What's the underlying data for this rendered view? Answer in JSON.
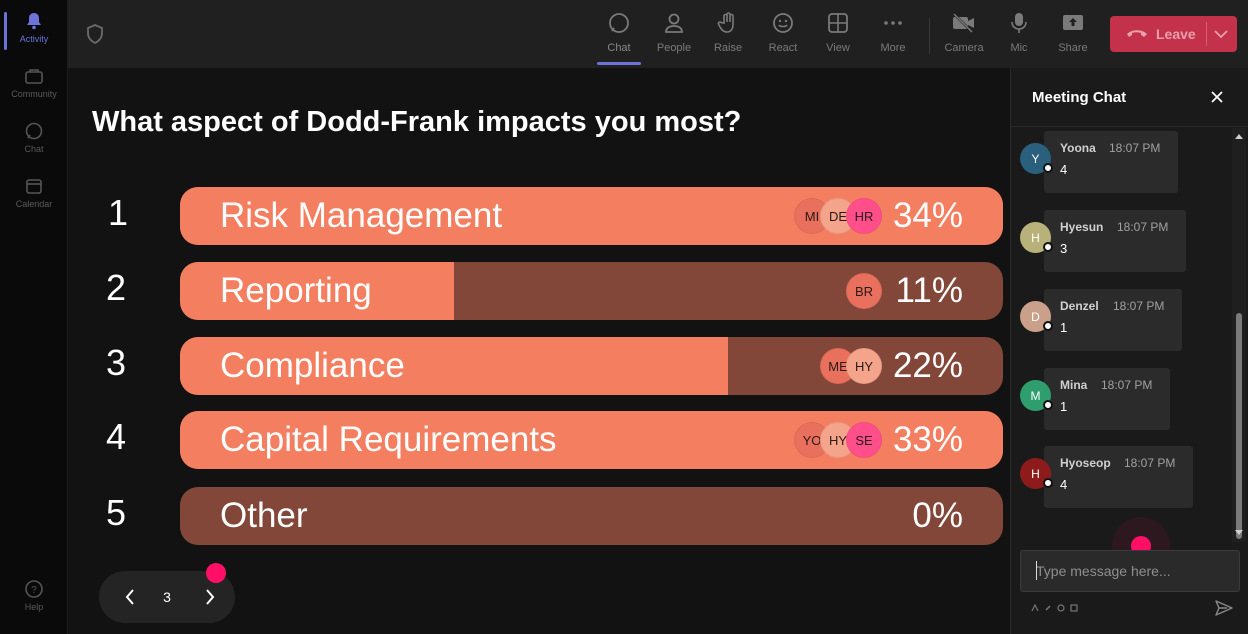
{
  "rail": {
    "items": [
      {
        "label": "Activity",
        "icon": "bell-icon",
        "active": true
      },
      {
        "label": "Community",
        "icon": "community-icon",
        "active": false
      },
      {
        "label": "Chat",
        "icon": "chat-icon",
        "active": false
      },
      {
        "label": "Calendar",
        "icon": "calendar-icon",
        "active": false
      }
    ],
    "help": {
      "label": "Help",
      "icon": "help-icon"
    }
  },
  "toolbar": {
    "buttons": [
      {
        "label": "Chat",
        "icon": "chat-bubble-icon",
        "active": true
      },
      {
        "label": "People",
        "icon": "people-icon"
      },
      {
        "label": "Raise",
        "icon": "raise-hand-icon"
      },
      {
        "label": "React",
        "icon": "react-smiley-icon"
      },
      {
        "label": "View",
        "icon": "view-grid-icon"
      },
      {
        "label": "More",
        "icon": "more-dots-icon"
      },
      {
        "label": "Camera",
        "icon": "camera-off-icon"
      },
      {
        "label": "Mic",
        "icon": "mic-icon"
      },
      {
        "label": "Share",
        "icon": "share-screen-icon"
      }
    ],
    "leave_label": "Leave"
  },
  "poll": {
    "question": "What aspect of Dodd-Frank impacts you most?",
    "options": [
      {
        "num": "1",
        "label": "Risk Management",
        "percent": "34%",
        "fill": 1.0,
        "avatars": [
          "MI",
          "DE",
          "HR"
        ]
      },
      {
        "num": "2",
        "label": "Reporting",
        "percent": "11%",
        "fill": 0.333,
        "avatars": [
          "BR"
        ]
      },
      {
        "num": "3",
        "label": "Compliance",
        "percent": "22%",
        "fill": 0.666,
        "avatars": [
          "ME",
          "HY"
        ]
      },
      {
        "num": "4",
        "label": "Capital Requirements",
        "percent": "33%",
        "fill": 1.0,
        "avatars": [
          "YO",
          "HY",
          "SE"
        ]
      },
      {
        "num": "5",
        "label": "Other",
        "percent": "0%",
        "fill": 0.0,
        "avatars": []
      }
    ]
  },
  "pager": {
    "current": "3"
  },
  "chat": {
    "title": "Meeting Chat",
    "messages": [
      {
        "initial": "Y",
        "author": "Yoona",
        "time": "18:07 PM",
        "text": "4",
        "color": "#2a5f7e"
      },
      {
        "initial": "H",
        "author": "Hyesun",
        "time": "18:07 PM",
        "text": "3",
        "color": "#b8b27a"
      },
      {
        "initial": "D",
        "author": "Denzel",
        "time": "18:07 PM",
        "text": "1",
        "color": "#caa08a"
      },
      {
        "initial": "M",
        "author": "Mina",
        "time": "18:07 PM",
        "text": "1",
        "color": "#2f9e6e"
      },
      {
        "initial": "H",
        "author": "Hyoseop",
        "time": "18:07 PM",
        "text": "4",
        "color": "#8e1b1b"
      }
    ],
    "input_placeholder": "Type message here..."
  },
  "colors": {
    "bar_fill": "#f47f60",
    "bar_track": "#824739",
    "leave": "#c4314b",
    "accent": "#6c73d9",
    "cursor": "#ff0f65"
  }
}
